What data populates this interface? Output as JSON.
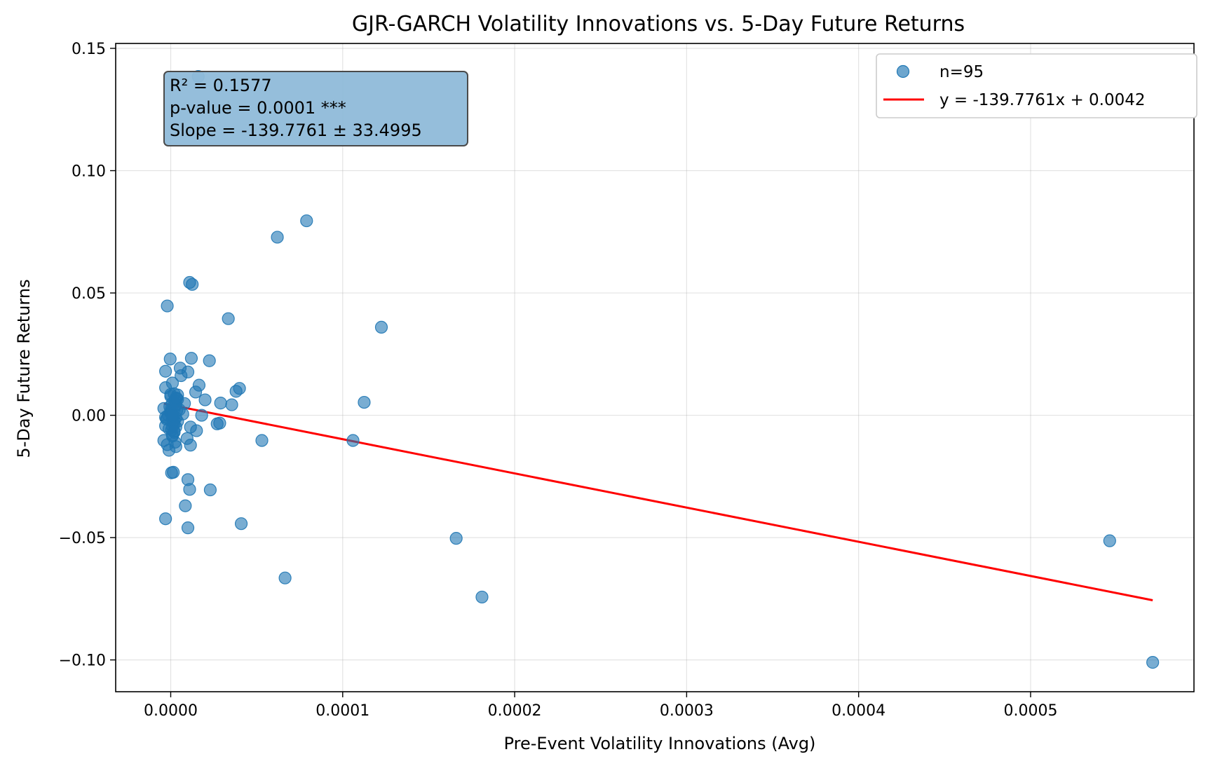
{
  "chart_data": {
    "type": "scatter",
    "title": "GJR-GARCH Volatility Innovations vs. 5-Day Future Returns",
    "xlabel": "Pre-Event Volatility Innovations (Avg)",
    "ylabel": "5-Day Future Returns",
    "xlim": [
      -3.2e-05,
      0.000595
    ],
    "ylim": [
      -0.113,
      0.152
    ],
    "xticks": [
      0.0,
      0.0001,
      0.0002,
      0.0003,
      0.0004,
      0.0005
    ],
    "xtick_labels": [
      "0.0000",
      "0.0001",
      "0.0002",
      "0.0003",
      "0.0004",
      "0.0005"
    ],
    "yticks": [
      -0.1,
      -0.05,
      0.0,
      0.05,
      0.1,
      0.15
    ],
    "ytick_labels": [
      "−0.10",
      "−0.05",
      "0.00",
      "0.05",
      "0.10",
      "0.15"
    ],
    "grid": true,
    "legend_position": "top-right",
    "colors": {
      "points": "#1f77b4",
      "line": "#ff0000",
      "stats_box": "#8fbad9"
    },
    "series": [
      {
        "name": "n=95",
        "kind": "scatter",
        "x": [
          1.6e-05,
          7.9e-05,
          6.2e-05,
          1.1e-05,
          1.25e-05,
          -2e-06,
          3.35e-05,
          0.0001225,
          1.2e-05,
          -3e-07,
          2.25e-05,
          5.5e-06,
          -3e-06,
          1e-05,
          6e-06,
          1.65e-05,
          -3e-06,
          1e-06,
          4e-05,
          3.8e-05,
          1.45e-05,
          2e-06,
          4e-06,
          2e-05,
          2.9e-05,
          3.55e-05,
          0.0001125,
          0.0,
          3e-06,
          8e-06,
          -4e-06,
          5e-06,
          1.8e-05,
          -3e-06,
          1e-06,
          2.7e-05,
          2.85e-05,
          1.15e-05,
          3e-06,
          1.5e-05,
          -3e-06,
          2e-06,
          1e-06,
          9.5e-06,
          -4e-06,
          5.3e-05,
          0.000106,
          2.5e-06,
          -2e-06,
          1.15e-05,
          3e-06,
          -1e-06,
          5e-07,
          1.5e-06,
          1e-05,
          1.1e-05,
          2.3e-05,
          8.5e-06,
          -3e-06,
          4.1e-05,
          1e-05,
          0.000166,
          0.000546,
          6.65e-05,
          0.000181,
          0.000571,
          0.0,
          1e-06,
          2e-06,
          4e-06,
          3e-06,
          1.5e-06,
          -1e-06,
          5e-07,
          3e-06,
          2e-06,
          -2.5e-06,
          4e-06,
          7e-06,
          1e-06,
          0.0,
          2.5e-06,
          -1.5e-06,
          3.5e-06,
          5e-07,
          2e-06,
          -5e-07,
          1.5e-06,
          3e-06,
          1e-06,
          0.0,
          2e-06,
          3.5e-06,
          -2e-06,
          1e-06
        ],
        "y": [
          0.1385,
          0.0795,
          0.0728,
          0.0543,
          0.0535,
          0.0447,
          0.0395,
          0.036,
          0.0233,
          0.023,
          0.0223,
          0.0193,
          0.018,
          0.0177,
          0.0162,
          0.0123,
          0.0113,
          0.0132,
          0.011,
          0.0098,
          0.0095,
          0.0088,
          0.0083,
          0.0063,
          0.005,
          0.0043,
          0.0053,
          0.0078,
          0.007,
          0.0048,
          0.0028,
          0.0023,
          0.0,
          -0.0008,
          -0.0015,
          -0.0035,
          -0.0032,
          -0.0048,
          -0.0048,
          -0.0063,
          -0.0043,
          -0.007,
          -0.008,
          -0.0095,
          -0.0103,
          -0.0103,
          -0.0103,
          -0.011,
          -0.012,
          -0.0122,
          -0.0128,
          -0.0143,
          -0.0235,
          -0.0233,
          -0.0263,
          -0.0303,
          -0.0305,
          -0.037,
          -0.0423,
          -0.0443,
          -0.046,
          -0.0503,
          -0.0513,
          -0.0665,
          -0.0743,
          -0.101,
          0.001,
          0.005,
          -0.002,
          0.0065,
          0.004,
          -0.003,
          -0.0055,
          0.003,
          -0.001,
          0.0025,
          -0.0015,
          -0.0025,
          0.0005,
          -0.0045,
          0.0015,
          0.006,
          0.0,
          0.002,
          -0.006,
          -0.0035,
          0.0035,
          -0.0005,
          0.0045,
          -0.0085,
          0.0085,
          -0.0065,
          0.007,
          -0.001,
          0.0
        ]
      },
      {
        "name": "y = -139.7761x + 0.0042",
        "kind": "line",
        "slope": -139.7761,
        "intercept": 0.0042,
        "x_range": [
          -4e-06,
          0.000571
        ]
      }
    ],
    "annotations": [
      "R² = 0.1577",
      "p-value = 0.0001 ***",
      "Slope = -139.7761 ± 33.4995"
    ]
  }
}
